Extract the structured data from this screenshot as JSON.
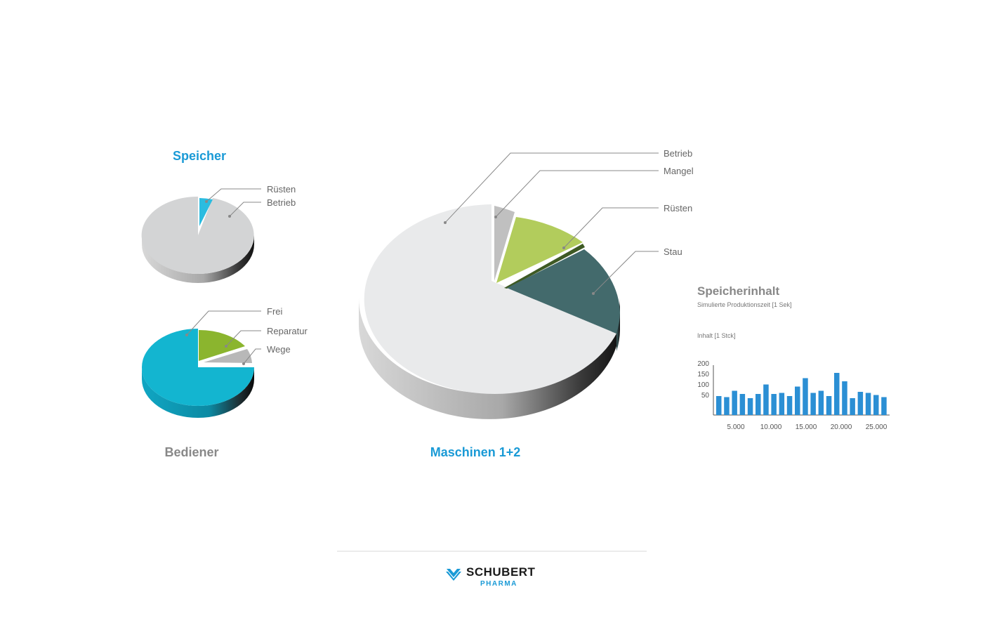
{
  "colors": {
    "accent_blue": "#1a9ad6",
    "title_grey": "#888888",
    "bar_blue": "#2b8fd4",
    "cyan": "#13b5d0",
    "green_light": "#b2cc5c",
    "green_dark": "#8bb52e",
    "teal_dark": "#436a6c",
    "grey_light": "#e9eaeb",
    "grey_mid": "#d3d4d5",
    "grey_slice": "#b8b8b8"
  },
  "chart_data": [
    {
      "type": "pie",
      "title": "Speicher",
      "slices": [
        {
          "label": "Rüsten",
          "value": 5,
          "color": "#2bbce0"
        },
        {
          "label": "Betrieb",
          "value": 95,
          "color": "#d3d4d5"
        }
      ]
    },
    {
      "type": "pie",
      "title": "Bediener",
      "slices": [
        {
          "label": "Frei",
          "value": 75,
          "color": "#13b5d0"
        },
        {
          "label": "Reparatur",
          "value": 17,
          "color": "#8bb52e"
        },
        {
          "label": "Wege",
          "value": 8,
          "color": "#b8b8b8"
        }
      ]
    },
    {
      "type": "pie",
      "title": "Maschinen 1+2",
      "slices": [
        {
          "label": "Betrieb",
          "value": 66,
          "color": "#e9eaeb"
        },
        {
          "label": "Mangel",
          "value": 3,
          "color": "#c0c0c0"
        },
        {
          "label": "Rüsten",
          "value": 13,
          "color": "#b2cc5c"
        },
        {
          "label": "Stau",
          "value": 18,
          "color": "#436a6c"
        }
      ]
    },
    {
      "type": "bar",
      "title": "Speicherinhalt",
      "subtitle": "Simulierte Produktionszeit [1 Sek]",
      "ylabel": "Inhalt [1 Stck]",
      "ylim": [
        0,
        250
      ],
      "yticks": [
        "200",
        "150",
        "100",
        "50"
      ],
      "xticks": [
        "5.000",
        "10.000",
        "15.000",
        "20.000",
        "25.000"
      ],
      "values": [
        90,
        85,
        115,
        100,
        80,
        100,
        145,
        100,
        105,
        90,
        135,
        175,
        105,
        115,
        90,
        200,
        160,
        80,
        110,
        105,
        95,
        85
      ],
      "color": "#2b8fd4"
    }
  ],
  "logo": {
    "name": "SCHUBERT",
    "sub": "PHARMA"
  }
}
